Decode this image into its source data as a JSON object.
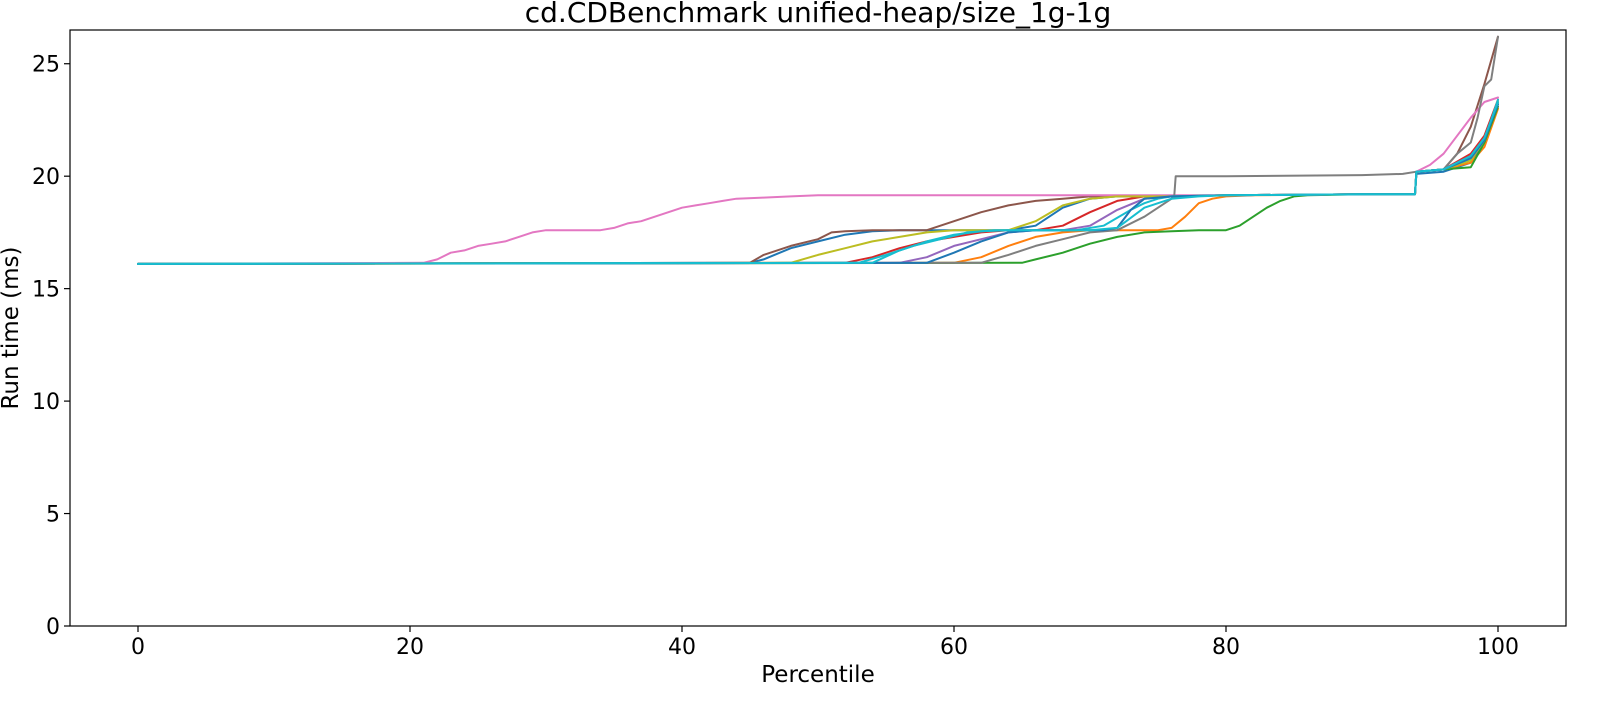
{
  "chart_data": {
    "type": "line",
    "title": "cd.CDBenchmark unified-heap/size_1g-1g",
    "xlabel": "Percentile",
    "ylabel": "Run time (ms)",
    "xlim": [
      -5,
      105
    ],
    "ylim": [
      0,
      26.5
    ],
    "xticks": [
      0,
      20,
      40,
      60,
      80,
      100
    ],
    "yticks": [
      0,
      5,
      10,
      15,
      20,
      25
    ],
    "xtick_labels": [
      "0",
      "20",
      "40",
      "60",
      "80",
      "100"
    ],
    "ytick_labels": [
      "0",
      "5",
      "10",
      "15",
      "20",
      "25"
    ],
    "grid": false,
    "legend": "none",
    "series": [
      {
        "color": "#1f77b4",
        "x": [
          0,
          45,
          46,
          48,
          50,
          52,
          54,
          56,
          60,
          64,
          66,
          68,
          70,
          72,
          74,
          76,
          80,
          90,
          93.9,
          94,
          96,
          98,
          99,
          100
        ],
        "y": [
          16.1,
          16.15,
          16.3,
          16.8,
          17.1,
          17.4,
          17.55,
          17.6,
          17.6,
          17.6,
          17.8,
          18.6,
          19.0,
          19.1,
          19.1,
          19.1,
          19.15,
          19.2,
          19.2,
          20.1,
          20.2,
          20.6,
          21.5,
          23.3
        ]
      },
      {
        "color": "#ff7f0e",
        "x": [
          0,
          60,
          62,
          64,
          66,
          68,
          70,
          72,
          74,
          75,
          76,
          77,
          78,
          79,
          80,
          82,
          90,
          93.9,
          94,
          96,
          98,
          99,
          100
        ],
        "y": [
          16.1,
          16.15,
          16.4,
          16.9,
          17.3,
          17.5,
          17.6,
          17.6,
          17.6,
          17.6,
          17.7,
          18.2,
          18.8,
          19.0,
          19.1,
          19.15,
          19.2,
          19.2,
          20.2,
          20.3,
          20.6,
          21.3,
          23.0
        ]
      },
      {
        "color": "#2ca02c",
        "x": [
          0,
          65,
          66,
          68,
          70,
          72,
          74,
          76,
          78,
          80,
          81,
          82,
          83,
          84,
          85,
          86,
          90,
          93.9,
          94,
          96,
          98,
          99,
          100
        ],
        "y": [
          16.1,
          16.15,
          16.3,
          16.6,
          17.0,
          17.3,
          17.5,
          17.55,
          17.6,
          17.6,
          17.8,
          18.2,
          18.6,
          18.9,
          19.1,
          19.15,
          19.2,
          19.2,
          20.2,
          20.3,
          20.4,
          21.5,
          23.1
        ]
      },
      {
        "color": "#d62728",
        "x": [
          0,
          52,
          54,
          56,
          58,
          60,
          62,
          64,
          66,
          68,
          70,
          72,
          74,
          76,
          80,
          90,
          93.9,
          94,
          96,
          98,
          99,
          100
        ],
        "y": [
          16.1,
          16.15,
          16.4,
          16.8,
          17.1,
          17.3,
          17.5,
          17.6,
          17.6,
          17.8,
          18.4,
          18.9,
          19.1,
          19.1,
          19.15,
          19.2,
          19.2,
          20.2,
          20.3,
          21.0,
          21.8,
          23.4
        ]
      },
      {
        "color": "#9467bd",
        "x": [
          0,
          56,
          58,
          60,
          62,
          64,
          66,
          68,
          70,
          72,
          74,
          76,
          80,
          90,
          93.9,
          94,
          96,
          98,
          99,
          100
        ],
        "y": [
          16.1,
          16.15,
          16.4,
          16.9,
          17.2,
          17.5,
          17.6,
          17.6,
          17.8,
          18.5,
          19.0,
          19.1,
          19.15,
          19.2,
          19.2,
          20.2,
          20.3,
          20.9,
          21.7,
          23.2
        ]
      },
      {
        "color": "#8c564b",
        "x": [
          0,
          45,
          46,
          48,
          50,
          51,
          52,
          54,
          56,
          58,
          60,
          62,
          64,
          66,
          68,
          70,
          72,
          74,
          76,
          80,
          90,
          93.9,
          94,
          96,
          97,
          98,
          99,
          100
        ],
        "y": [
          16.1,
          16.15,
          16.5,
          16.9,
          17.2,
          17.5,
          17.55,
          17.6,
          17.6,
          17.6,
          18.0,
          18.4,
          18.7,
          18.9,
          19.0,
          19.1,
          19.1,
          19.1,
          19.1,
          19.15,
          19.2,
          19.2,
          20.2,
          20.3,
          21.0,
          22.2,
          24.1,
          26.2
        ]
      },
      {
        "color": "#e377c2",
        "x": [
          0,
          21,
          22,
          23,
          24,
          25,
          26,
          27,
          28,
          29,
          30,
          32,
          34,
          35,
          36,
          37,
          38,
          39,
          40,
          41,
          42,
          43,
          44,
          46,
          48,
          50,
          60,
          70,
          80,
          90,
          93.9,
          94,
          95,
          96,
          97,
          98,
          99,
          100
        ],
        "y": [
          16.1,
          16.15,
          16.3,
          16.6,
          16.7,
          16.9,
          17.0,
          17.1,
          17.3,
          17.5,
          17.6,
          17.6,
          17.6,
          17.7,
          17.9,
          18.0,
          18.2,
          18.4,
          18.6,
          18.7,
          18.8,
          18.9,
          19.0,
          19.05,
          19.1,
          19.15,
          19.15,
          19.15,
          19.15,
          19.2,
          19.2,
          20.2,
          20.5,
          21.0,
          21.8,
          22.6,
          23.3,
          23.5
        ]
      },
      {
        "color": "#7f7f7f",
        "x": [
          0,
          62,
          64,
          66,
          68,
          70,
          72,
          74,
          76,
          76.2,
          76.3,
          80,
          90,
          93,
          94,
          96,
          97,
          98,
          98.5,
          99,
          99.5,
          100
        ],
        "y": [
          16.1,
          16.15,
          16.5,
          16.9,
          17.2,
          17.5,
          17.6,
          18.2,
          19.0,
          19.15,
          20.0,
          20.0,
          20.05,
          20.1,
          20.2,
          20.3,
          21.0,
          21.5,
          22.6,
          24.0,
          24.3,
          26.2
        ]
      },
      {
        "color": "#bcbd22",
        "x": [
          0,
          48,
          50,
          52,
          54,
          56,
          58,
          60,
          62,
          64,
          66,
          68,
          70,
          72,
          74,
          76,
          80,
          90,
          93.9,
          94,
          96,
          98,
          99,
          100
        ],
        "y": [
          16.1,
          16.15,
          16.5,
          16.8,
          17.1,
          17.3,
          17.5,
          17.6,
          17.6,
          17.6,
          18.0,
          18.7,
          19.0,
          19.1,
          19.1,
          19.1,
          19.15,
          19.2,
          19.2,
          20.2,
          20.3,
          20.7,
          21.6,
          23.3
        ]
      },
      {
        "color": "#17becf",
        "x": [
          0,
          53,
          55,
          57,
          59,
          61,
          63,
          65,
          67,
          69,
          71,
          73,
          74,
          75,
          76,
          80,
          90,
          93.9,
          94,
          96,
          98,
          99,
          100
        ],
        "y": [
          16.1,
          16.15,
          16.5,
          16.9,
          17.2,
          17.5,
          17.6,
          17.6,
          17.6,
          17.6,
          17.8,
          18.5,
          18.8,
          19.0,
          19.1,
          19.15,
          19.2,
          19.2,
          20.2,
          20.3,
          20.8,
          21.6,
          23.4
        ]
      },
      {
        "color": "#1f77b4",
        "x": [
          0,
          58,
          60,
          62,
          64,
          66,
          68,
          70,
          71,
          72,
          73,
          74,
          76,
          80,
          90,
          93.9,
          94,
          96,
          98,
          99,
          100
        ],
        "y": [
          16.1,
          16.15,
          16.6,
          17.1,
          17.5,
          17.6,
          17.6,
          17.6,
          17.6,
          17.7,
          18.5,
          19.0,
          19.1,
          19.15,
          19.2,
          19.2,
          20.2,
          20.3,
          20.8,
          21.6,
          23.2
        ]
      },
      {
        "color": "#17becf",
        "x": [
          0,
          54,
          56,
          58,
          60,
          62,
          64,
          66,
          68,
          70,
          72,
          74,
          76,
          78,
          80,
          90,
          93.9,
          94,
          96,
          98,
          99,
          100
        ],
        "y": [
          16.1,
          16.15,
          16.7,
          17.1,
          17.4,
          17.55,
          17.6,
          17.6,
          17.6,
          17.6,
          17.7,
          18.6,
          19.0,
          19.1,
          19.15,
          19.2,
          19.2,
          20.2,
          20.3,
          20.9,
          21.7,
          23.3
        ]
      }
    ]
  }
}
